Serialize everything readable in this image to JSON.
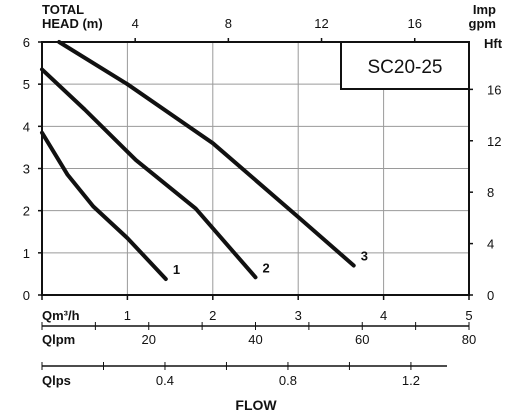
{
  "chart_data": {
    "type": "line",
    "top_left_label": [
      "TOTAL",
      "HEAD (m)"
    ],
    "top_right_label": [
      "Imp",
      "gpm"
    ],
    "right_label": "Hft",
    "bottom_label": "FLOW",
    "model_box": "SC20-25",
    "grid": true,
    "x_primary": {
      "label": "Qm³/h",
      "range": [
        0,
        5
      ],
      "ticks": [
        "0",
        "1",
        "2",
        "3",
        "4",
        "5"
      ]
    },
    "x_lpm": {
      "label": "Qlpm",
      "range": [
        0,
        80
      ],
      "ticks": [
        "20",
        "40",
        "60",
        "80"
      ]
    },
    "x_lps": {
      "label": "Qlps",
      "range": [
        0,
        1.3889
      ],
      "ticks": [
        "0.4",
        "0.8",
        "1.2"
      ]
    },
    "x_top": {
      "range": [
        0,
        18.33
      ],
      "ticks": [
        "4",
        "8",
        "12",
        "16"
      ]
    },
    "y_primary": {
      "range": [
        0,
        6
      ],
      "ticks": [
        "0",
        "1",
        "2",
        "3",
        "4",
        "5",
        "6"
      ]
    },
    "y_right": {
      "range": [
        0,
        19.685
      ],
      "ticks": [
        "0",
        "4",
        "8",
        "12",
        "16"
      ]
    },
    "series": [
      {
        "name": "1",
        "x": [
          0,
          0.3,
          0.6,
          1.0,
          1.45
        ],
        "y": [
          3.85,
          2.85,
          2.1,
          1.35,
          0.38
        ]
      },
      {
        "name": "2",
        "x": [
          0,
          0.5,
          1.1,
          1.8,
          2.5
        ],
        "y": [
          5.35,
          4.4,
          3.2,
          2.05,
          0.42
        ]
      },
      {
        "name": "3",
        "x": [
          0.2,
          1.0,
          2.0,
          3.0,
          3.65
        ],
        "y": [
          6.0,
          5.0,
          3.6,
          1.85,
          0.7
        ]
      }
    ]
  }
}
